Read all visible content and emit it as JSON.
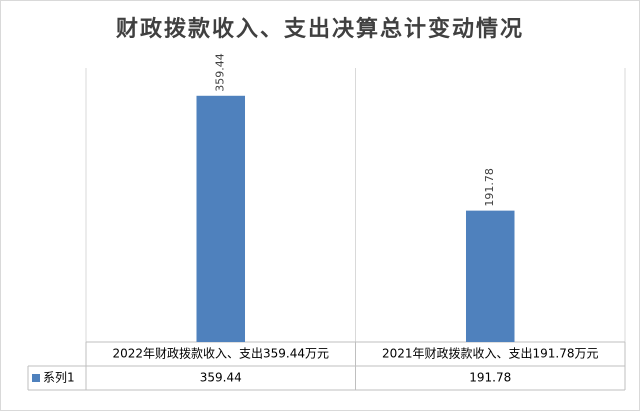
{
  "chart_data": {
    "type": "bar",
    "title": "财政拨款收入、支出决算总计变动情况",
    "categories": [
      "2022年财政拨款收入、支出359.44万元",
      "2021年财政拨款收入、支出191.78万元"
    ],
    "series": [
      {
        "name": "系列1",
        "color": "#4f81bd",
        "values": [
          359.44,
          191.78
        ]
      }
    ],
    "ylim": [
      0,
      400
    ],
    "data_table": true
  }
}
